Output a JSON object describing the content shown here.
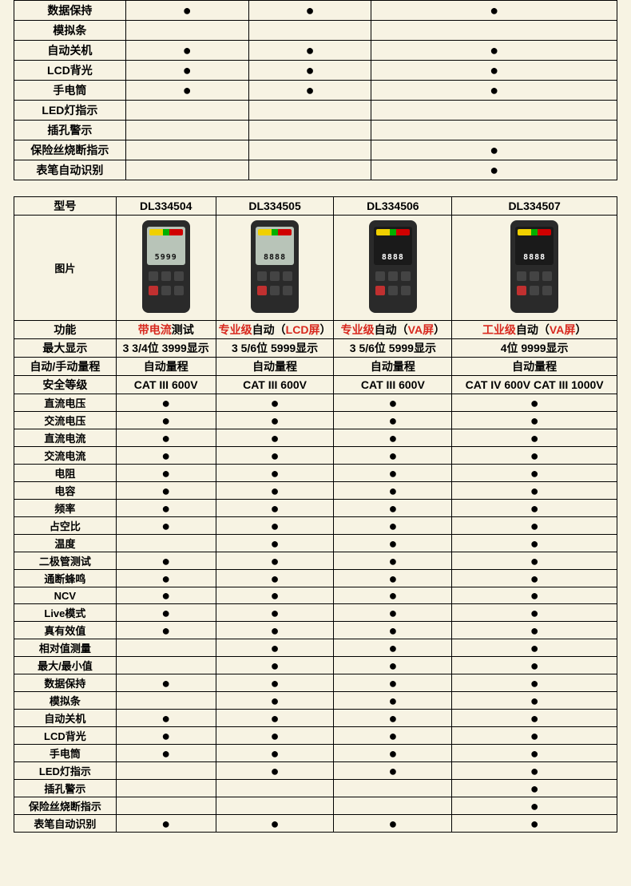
{
  "colors": {
    "bg": "#f7f3e3",
    "red": "#d8281e",
    "border": "#000000"
  },
  "table1": {
    "label_col_width": 140,
    "data_col_width": 154,
    "num_data_cols": 3,
    "rows": [
      {
        "label": "数据保持",
        "cells": [
          "●",
          "●",
          "●"
        ]
      },
      {
        "label": "模拟条",
        "cells": [
          "",
          "",
          ""
        ]
      },
      {
        "label": "自动关机",
        "cells": [
          "●",
          "●",
          "●"
        ]
      },
      {
        "label": "LCD背光",
        "cells": [
          "●",
          "●",
          "●"
        ]
      },
      {
        "label": "手电筒",
        "cells": [
          "●",
          "●",
          "●"
        ]
      },
      {
        "label": "LED灯指示",
        "cells": [
          "",
          "",
          ""
        ]
      },
      {
        "label": "插孔警示",
        "cells": [
          "",
          "",
          ""
        ]
      },
      {
        "label": "保险丝烧断指示",
        "cells": [
          "",
          "",
          "●"
        ]
      },
      {
        "label": "表笔自动识别",
        "cells": [
          "",
          "",
          "●"
        ]
      }
    ]
  },
  "table2": {
    "header": {
      "model_label": "型号",
      "image_label": "图片",
      "function_label": "功能",
      "models": [
        "DL334504",
        "DL334505",
        "DL334506",
        "DL334507"
      ]
    },
    "devices": [
      {
        "screen": "lcd",
        "digits": "5999"
      },
      {
        "screen": "lcd",
        "digits": "8888"
      },
      {
        "screen": "va",
        "digits": "8888"
      },
      {
        "screen": "va",
        "digits": "8888"
      }
    ],
    "function_row": [
      {
        "r1": "带电流",
        "b1": "测试"
      },
      {
        "r1": "专业级",
        "b1": "自动（",
        "r2": "LCD屏",
        "b2": "）"
      },
      {
        "r1": "专业级",
        "b1": "自动（",
        "r2": "VA屏",
        "b2": "）"
      },
      {
        "r1": "工业级",
        "b1": "自动（",
        "r2": "VA屏",
        "b2": "）"
      }
    ],
    "spec_rows": [
      {
        "label": "最大显示",
        "cells": [
          "3 3/4位 3999显示",
          "3 5/6位 5999显示",
          "3 5/6位 5999显示",
          "4位 9999显示"
        ]
      },
      {
        "label": "自动/手动量程",
        "cells": [
          "自动量程",
          "自动量程",
          "自动量程",
          "自动量程"
        ]
      },
      {
        "label": "安全等级",
        "cells": [
          "CAT III 600V",
          "CAT III 600V",
          "CAT III 600V",
          "CAT IV 600V CAT III 1000V"
        ]
      }
    ],
    "feature_rows": [
      {
        "label": "直流电压",
        "cells": [
          "●",
          "●",
          "●",
          "●"
        ]
      },
      {
        "label": "交流电压",
        "cells": [
          "●",
          "●",
          "●",
          "●"
        ]
      },
      {
        "label": "直流电流",
        "cells": [
          "●",
          "●",
          "●",
          "●"
        ]
      },
      {
        "label": "交流电流",
        "cells": [
          "●",
          "●",
          "●",
          "●"
        ]
      },
      {
        "label": "电阻",
        "cells": [
          "●",
          "●",
          "●",
          "●"
        ]
      },
      {
        "label": "电容",
        "cells": [
          "●",
          "●",
          "●",
          "●"
        ]
      },
      {
        "label": "频率",
        "cells": [
          "●",
          "●",
          "●",
          "●"
        ]
      },
      {
        "label": "占空比",
        "cells": [
          "●",
          "●",
          "●",
          "●"
        ]
      },
      {
        "label": "温度",
        "cells": [
          "",
          "●",
          "●",
          "●"
        ]
      },
      {
        "label": "二极管测试",
        "cells": [
          "●",
          "●",
          "●",
          "●"
        ]
      },
      {
        "label": "通断蜂鸣",
        "cells": [
          "●",
          "●",
          "●",
          "●"
        ]
      },
      {
        "label": "NCV",
        "cells": [
          "●",
          "●",
          "●",
          "●"
        ]
      },
      {
        "label": "Live模式",
        "cells": [
          "●",
          "●",
          "●",
          "●"
        ]
      },
      {
        "label": "真有效值",
        "cells": [
          "●",
          "●",
          "●",
          "●"
        ]
      },
      {
        "label": "相对值测量",
        "cells": [
          "",
          "●",
          "●",
          "●"
        ]
      },
      {
        "label": "最大/最小值",
        "cells": [
          "",
          "●",
          "●",
          "●"
        ]
      },
      {
        "label": "数据保持",
        "cells": [
          "●",
          "●",
          "●",
          "●"
        ]
      },
      {
        "label": "模拟条",
        "cells": [
          "",
          "●",
          "●",
          "●"
        ]
      },
      {
        "label": "自动关机",
        "cells": [
          "●",
          "●",
          "●",
          "●"
        ]
      },
      {
        "label": "LCD背光",
        "cells": [
          "●",
          "●",
          "●",
          "●"
        ]
      },
      {
        "label": "手电筒",
        "cells": [
          "●",
          "●",
          "●",
          "●"
        ]
      },
      {
        "label": "LED灯指示",
        "cells": [
          "",
          "●",
          "●",
          "●"
        ]
      },
      {
        "label": "插孔警示",
        "cells": [
          "",
          "",
          "",
          "●"
        ]
      },
      {
        "label": "保险丝烧断指示",
        "cells": [
          "",
          "",
          "",
          "●"
        ]
      },
      {
        "label": "表笔自动识别",
        "cells": [
          "●",
          "●",
          "●",
          "●"
        ]
      }
    ]
  }
}
